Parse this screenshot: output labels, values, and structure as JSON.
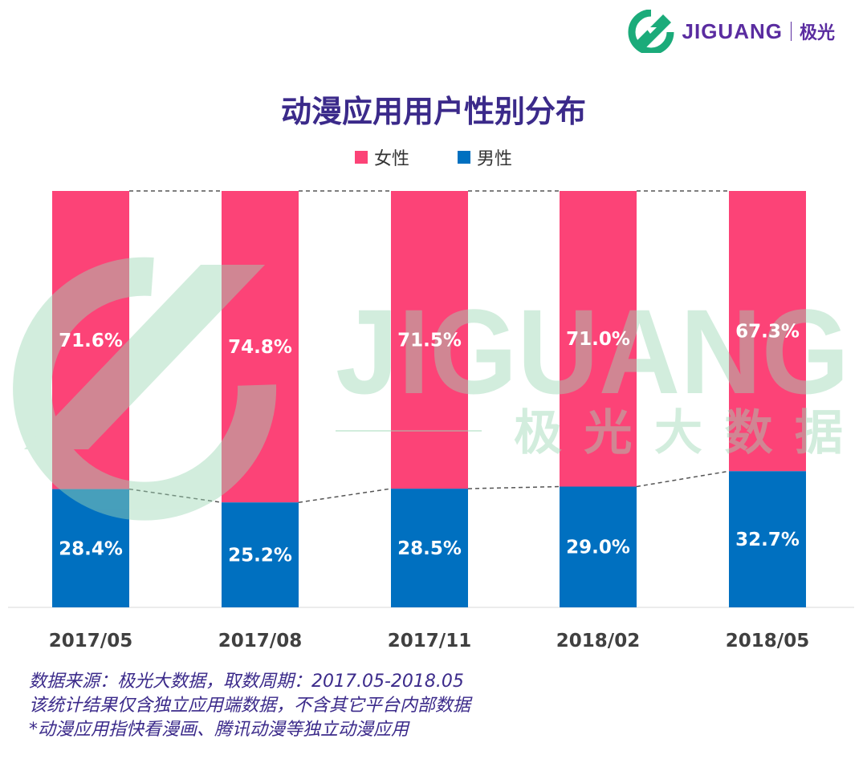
{
  "logo": {
    "word": "JIGUANG",
    "cn": "极光"
  },
  "watermark": {
    "word": "JIGUANG",
    "cn": "极 光 大 数 据"
  },
  "colors": {
    "female": "#fc4377",
    "male": "#0070c0",
    "title": "#3b2a8a",
    "watermark": "#9dd8b6",
    "logo_green": "#1bab7a"
  },
  "chart_data": {
    "type": "bar",
    "stacked": true,
    "title": "动漫应用用户性别分布",
    "categories": [
      "2017/05",
      "2017/08",
      "2017/11",
      "2018/02",
      "2018/05"
    ],
    "series": [
      {
        "name": "男性",
        "values": [
          28.4,
          25.2,
          28.5,
          29.0,
          32.7
        ],
        "labels": [
          "28.4%",
          "25.2%",
          "28.5%",
          "29.0%",
          "32.7%"
        ]
      },
      {
        "name": "女性",
        "values": [
          71.6,
          74.8,
          71.5,
          71.0,
          67.3
        ],
        "labels": [
          "71.6%",
          "74.8%",
          "71.5%",
          "71.0%",
          "67.3%"
        ]
      }
    ],
    "ylim": [
      0,
      100
    ],
    "legend": [
      {
        "name": "女性"
      },
      {
        "name": "男性"
      }
    ],
    "legend_position": "top-center",
    "grid": false
  },
  "footer": {
    "line1": "数据来源：极光大数据，取数周期：2017.05-2018.05",
    "line2": "该统计结果仅含独立应用端数据，不含其它平台内部数据",
    "line3": "*动漫应用指快看漫画、腾讯动漫等独立动漫应用"
  }
}
